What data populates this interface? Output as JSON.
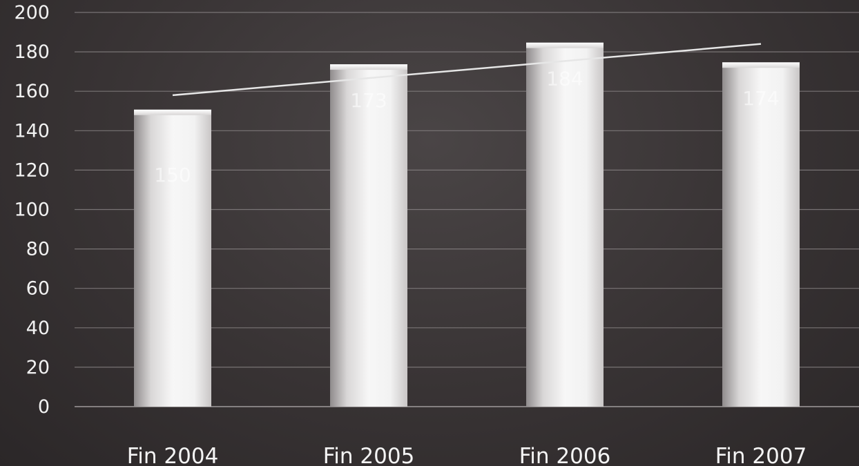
{
  "chart_data": {
    "type": "bar",
    "categories": [
      "Fin 2004",
      "Fin 2005",
      "Fin 2006",
      "Fin 2007"
    ],
    "values": [
      150,
      173,
      184,
      174
    ],
    "data_labels": [
      "150",
      "173",
      "184",
      "174"
    ],
    "trendline": {
      "start": 158,
      "end": 184
    },
    "ylim": [
      0,
      200
    ],
    "yticks": [
      0,
      20,
      40,
      60,
      80,
      100,
      120,
      140,
      160,
      180,
      200
    ],
    "ytick_labels": [
      "0",
      "20",
      "40",
      "60",
      "80",
      "100",
      "120",
      "140",
      "160",
      "180",
      "200"
    ],
    "grid": true,
    "legend": "none",
    "title": "",
    "xlabel": "",
    "ylabel": "",
    "colors": {
      "bar_light": "#f4f4f4",
      "bar_dark": "#8f8b8c",
      "trendline": "#e6e6e6",
      "gridline": "#8a8586",
      "background": "#3a3536"
    }
  }
}
